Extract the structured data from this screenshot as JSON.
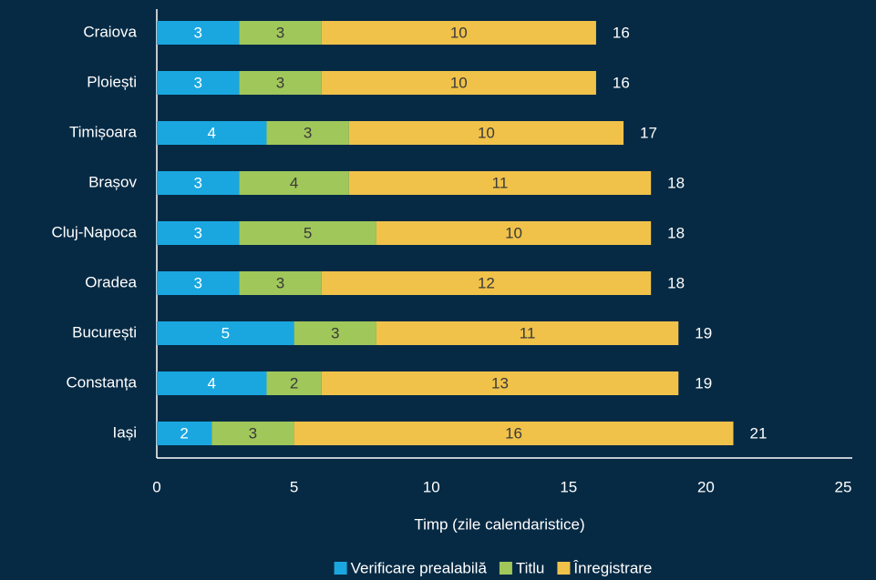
{
  "chart_data": {
    "type": "bar",
    "orientation": "horizontal",
    "stacked": true,
    "categories": [
      "Craiova",
      "Ploiești",
      "Timișoara",
      "Brașov",
      "Cluj-Napoca",
      "Oradea",
      "București",
      "Constanța",
      "Iași"
    ],
    "series": [
      {
        "name": "Verificare prealabilă",
        "color": "#1aa7e0",
        "label_color": "#ffffff",
        "values": [
          3,
          3,
          4,
          3,
          3,
          3,
          5,
          4,
          2
        ]
      },
      {
        "name": "Titlu",
        "color": "#a0c75a",
        "label_color": "#3a3a3a",
        "values": [
          3,
          3,
          3,
          4,
          5,
          3,
          3,
          2,
          3
        ]
      },
      {
        "name": "Înregistrare",
        "color": "#f0c24a",
        "label_color": "#3a3a3a",
        "values": [
          10,
          10,
          10,
          11,
          10,
          12,
          11,
          13,
          16
        ]
      }
    ],
    "totals": [
      16,
      16,
      17,
      18,
      18,
      18,
      19,
      19,
      21
    ],
    "xlabel": "Timp (zile calendaristice)",
    "xlim": [
      0,
      25
    ],
    "xticks": [
      0,
      5,
      10,
      15,
      20,
      25
    ],
    "legend": "bottom",
    "grid": false
  }
}
